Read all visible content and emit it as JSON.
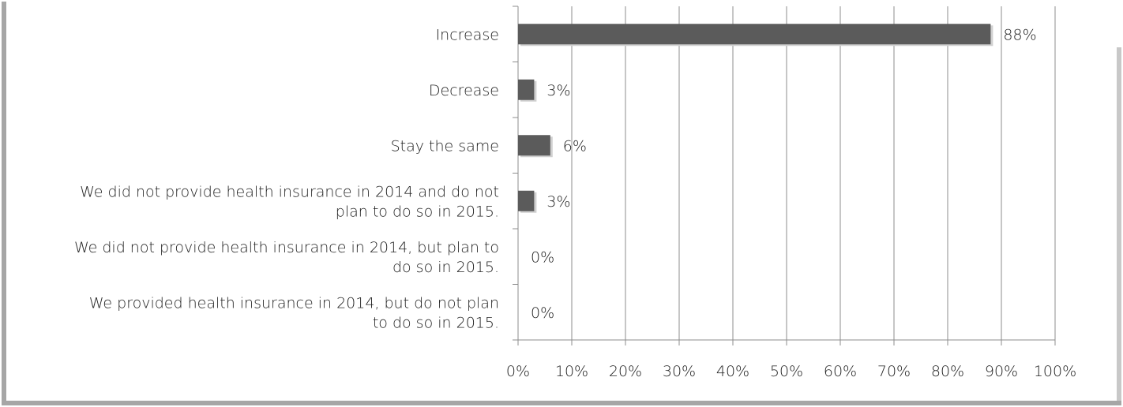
{
  "chart_data": {
    "type": "bar",
    "orientation": "horizontal",
    "categories": [
      [
        "Increase"
      ],
      [
        "Decrease"
      ],
      [
        "Stay the same"
      ],
      [
        "We did not provide health insurance in 2014 and do not",
        "plan to do so in 2015."
      ],
      [
        "We did not provide health insurance in 2014, but plan to",
        "do so in 2015."
      ],
      [
        "We provided health insurance in 2014, but do not plan",
        "to do so in 2015."
      ]
    ],
    "values": [
      88,
      3,
      6,
      3,
      0,
      0
    ],
    "value_labels": [
      "88%",
      "3%",
      "6%",
      "3%",
      "0%",
      "0%"
    ],
    "x_ticks": [
      "0%",
      "10%",
      "20%",
      "30%",
      "40%",
      "50%",
      "60%",
      "70%",
      "80%",
      "90%",
      "100%"
    ],
    "xlim": [
      0,
      100
    ],
    "grid": true,
    "bar_color": "#5b5b5b",
    "title": "",
    "xlabel": "",
    "ylabel": ""
  }
}
